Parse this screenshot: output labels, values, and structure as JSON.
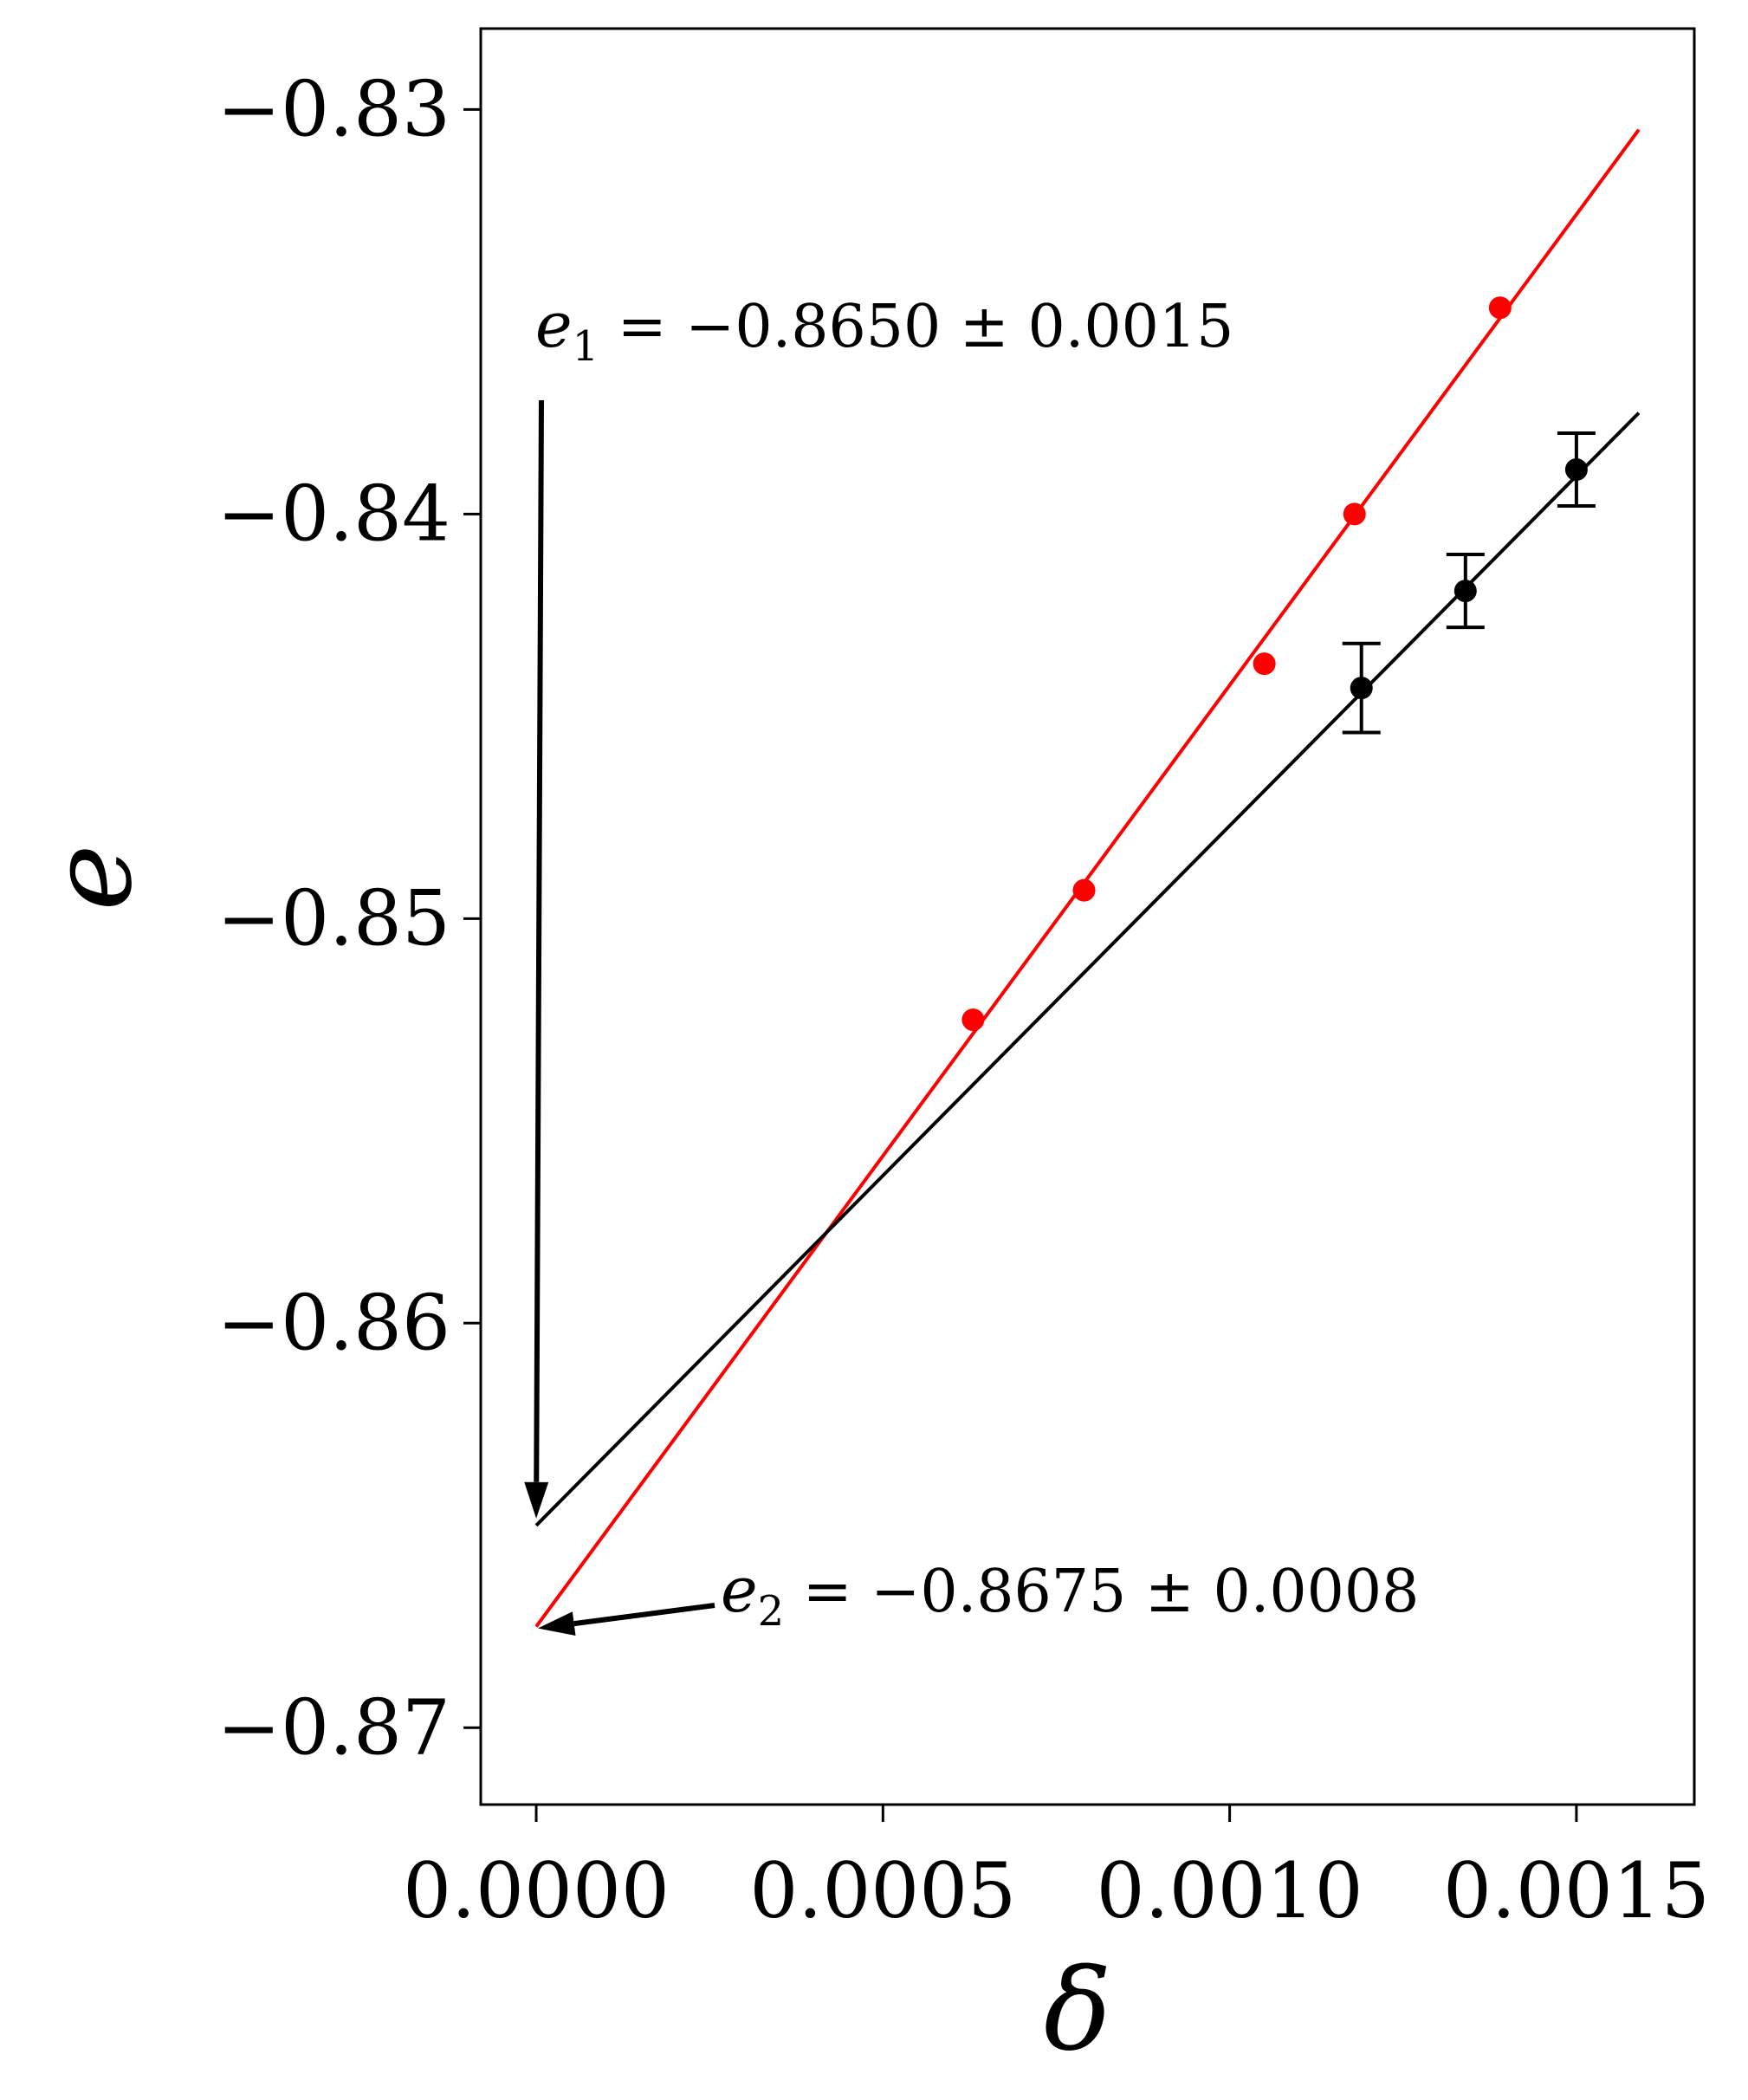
{
  "chart_data": {
    "type": "scatter",
    "xlabel": "δ",
    "ylabel": "e",
    "xlim": [
      -8e-05,
      0.00167
    ],
    "ylim": [
      -0.8719,
      -0.828
    ],
    "x_ticks": [
      0.0,
      0.0005,
      0.001,
      0.0015
    ],
    "x_tick_labels": [
      "0.0000",
      "0.0005",
      "0.0010",
      "0.0015"
    ],
    "y_ticks": [
      -0.83,
      -0.84,
      -0.85,
      -0.86,
      -0.87
    ],
    "y_tick_labels": [
      "−0.83",
      "−0.84",
      "−0.85",
      "−0.86",
      "−0.87"
    ],
    "grid": false,
    "series": [
      {
        "color": "#ff0000",
        "points": [
          {
            "x": 0.00063,
            "y": -0.8525
          },
          {
            "x": 0.00079,
            "y": -0.8493
          },
          {
            "x": 0.00105,
            "y": -0.8437
          },
          {
            "x": 0.00118,
            "y": -0.84
          },
          {
            "x": 0.00139,
            "y": -0.8349
          }
        ],
        "fit": {
          "x": [
            0.0,
            0.00159
          ],
          "y": [
            -0.8675,
            -0.8305
          ]
        }
      },
      {
        "color": "#000000",
        "points": [
          {
            "x": 0.00119,
            "y": -0.8443,
            "err": 0.0011
          },
          {
            "x": 0.00134,
            "y": -0.8419,
            "err": 0.0009
          },
          {
            "x": 0.0015,
            "y": -0.8389,
            "err": 0.0009
          }
        ],
        "fit": {
          "x": [
            0.0,
            0.00159
          ],
          "y": [
            -0.865,
            -0.8375
          ]
        }
      }
    ],
    "annotations": [
      {
        "label": "e",
        "subscript": "1",
        "text": " = −0.8650 ± 0.0015",
        "target": {
          "x": 0.0,
          "y": -0.865
        }
      },
      {
        "label": "e",
        "subscript": "2",
        "text": " = −0.8675 ± 0.0008",
        "target": {
          "x": 0.0,
          "y": -0.8675
        }
      }
    ]
  }
}
